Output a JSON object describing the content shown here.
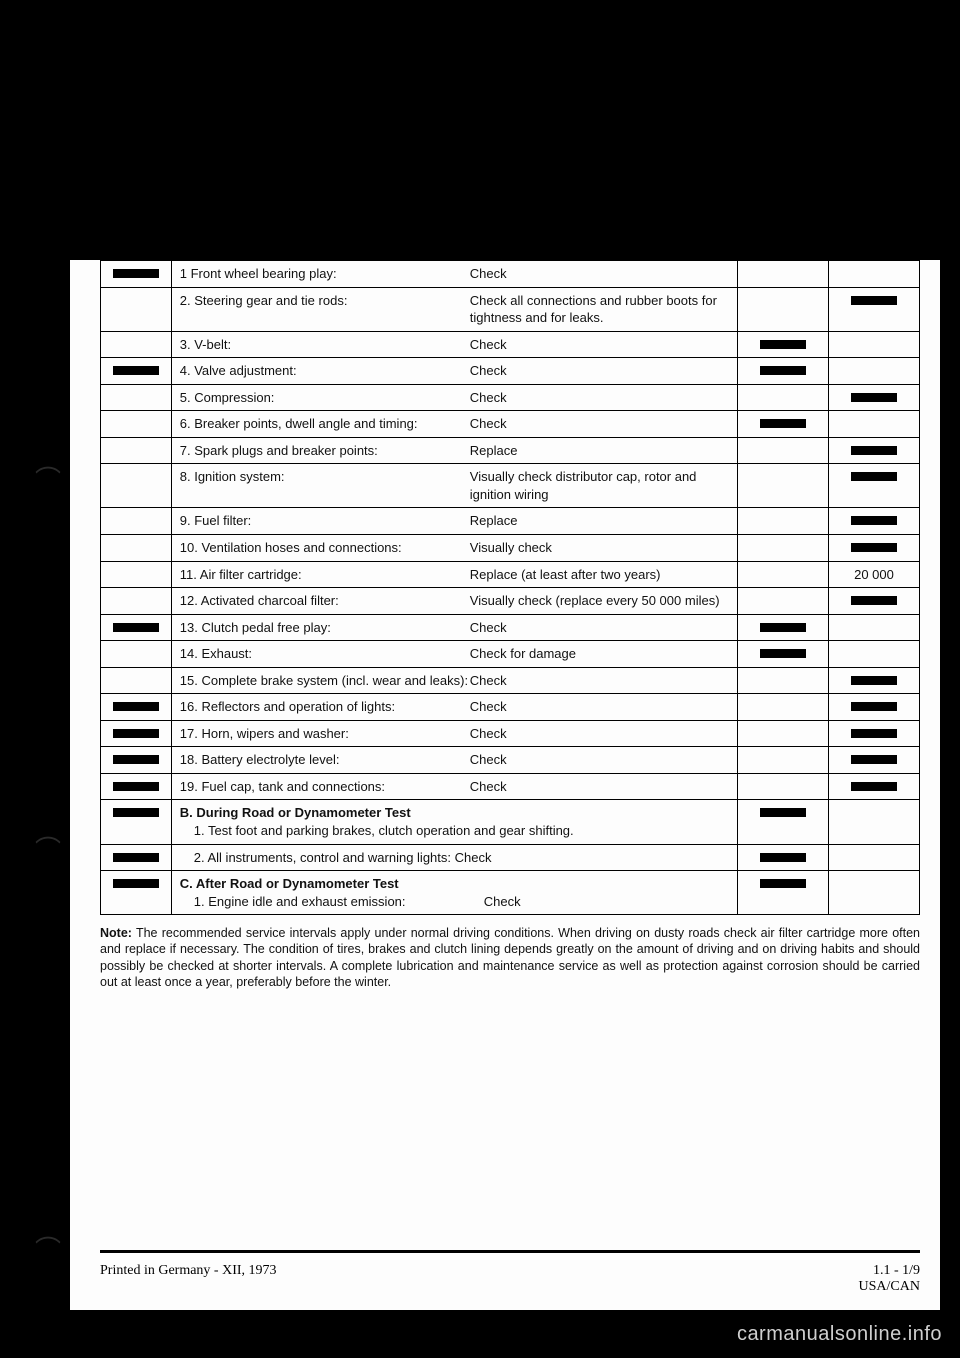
{
  "rows": [
    {
      "colA": "blk",
      "label": "1   Front wheel bearing play:",
      "action": "Check",
      "colC": "",
      "colD": ""
    },
    {
      "colA": "",
      "label": "2. Steering gear and tie rods:",
      "action": "Check all connections and rubber boots for tightness and for leaks.",
      "colC": "",
      "colD": "blk"
    },
    {
      "colA": "",
      "label": "3. V-belt:",
      "action": "Check",
      "colC": "blk",
      "colD": ""
    },
    {
      "colA": "blk",
      "label": "4. Valve adjustment:",
      "action": "Check",
      "colC": "blk",
      "colD": ""
    },
    {
      "colA": "",
      "label": "5. Compression:",
      "action": "Check",
      "colC": "",
      "colD": "blk"
    },
    {
      "colA": "",
      "label": "6. Breaker points, dwell angle and timing:",
      "action": "Check",
      "colC": "blk",
      "colD": ""
    },
    {
      "colA": "",
      "label": "7. Spark plugs and breaker points:",
      "action": "Replace",
      "colC": "",
      "colD": "blk"
    },
    {
      "colA": "",
      "label": "8. Ignition system:",
      "action": "Visually check distributor cap, rotor and ignition wiring",
      "colC": "",
      "colD": "blk"
    },
    {
      "colA": "",
      "label": "9. Fuel filter:",
      "action": "Replace",
      "colC": "",
      "colD": "blk"
    },
    {
      "colA": "",
      "label": "10. Ventilation hoses and connections:",
      "action": "Visually check",
      "colC": "",
      "colD": "blk"
    },
    {
      "colA": "",
      "label": "11. Air filter cartridge:",
      "action": "Replace (at least after two years)",
      "colC": "",
      "colD": "20 000"
    },
    {
      "colA": "",
      "label": "12. Activated charcoal filter:",
      "action": "Visually check (replace every 50 000 miles)",
      "colC": "",
      "colD": "blk"
    },
    {
      "colA": "blk",
      "label": "13. Clutch pedal free play:",
      "action": "Check",
      "colC": "blk",
      "colD": ""
    },
    {
      "colA": "",
      "label": "14. Exhaust:",
      "action": "Check for damage",
      "colC": "blk",
      "colD": ""
    },
    {
      "colA": "",
      "label": "15. Complete brake system (incl. wear and leaks):",
      "action": "Check",
      "colC": "",
      "colD": "blk"
    },
    {
      "colA": "blk",
      "label": "16. Reflectors and operation of lights:",
      "action": "Check",
      "colC": "",
      "colD": "blk"
    },
    {
      "colA": "blk",
      "label": "17. Horn, wipers and washer:",
      "action": "Check",
      "colC": "",
      "colD": "blk"
    },
    {
      "colA": "blk",
      "label": "18. Battery electrolyte level:",
      "action": "Check",
      "colC": "",
      "colD": "blk"
    },
    {
      "colA": "blk",
      "label": "19. Fuel cap, tank and connections:",
      "action": "Check",
      "colC": "",
      "colD": "blk"
    }
  ],
  "sectionB": {
    "head": "B. During Road or Dynamometer Test",
    "r1": {
      "colA": "blk",
      "text": "1. Test foot and parking brakes, clutch operation and gear shifting.",
      "colC": "blk",
      "colD": ""
    },
    "r2": {
      "colA": "blk",
      "text": "2. All instruments, control and warning lights:  Check",
      "colC": "blk",
      "colD": ""
    }
  },
  "sectionC": {
    "head": "C. After Road or Dynamometer Test",
    "r1": {
      "colA": "blk",
      "label": "1. Engine idle and exhaust emission:",
      "action": "Check",
      "colC": "blk",
      "colD": ""
    }
  },
  "note_label": "Note:",
  "note_body": "The recommended service intervals apply under normal driving conditions. When driving on dusty roads check air filter cartridge more often and replace if necessary. The condition of tires, brakes and clutch lining depends greatly on the amount of driving and on driving habits and should possibly be checked at shorter intervals. A complete lubrication and maintenance service as well as protection against corrosion should be carried out at least once a year, preferably before the winter.",
  "footer_left": "Printed in Germany  -  XII, 1973",
  "footer_right_top": "1.1 - 1/9",
  "footer_right_bot": "USA/CAN",
  "watermark": "carmanualsonline.info"
}
